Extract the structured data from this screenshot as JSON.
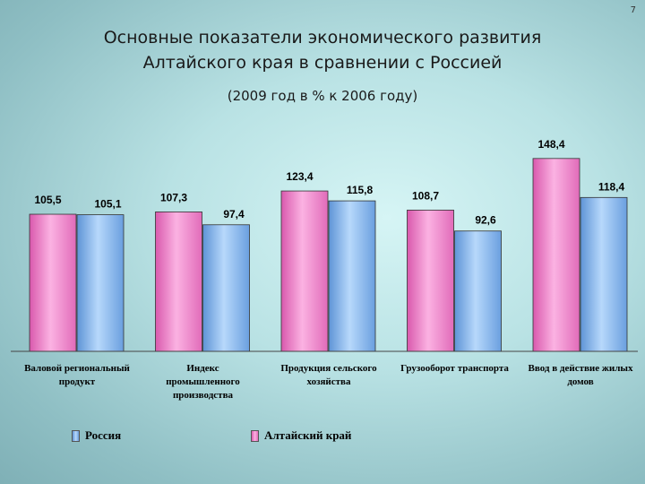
{
  "slide_number": "7",
  "title_line1": "Основные показатели экономического развития",
  "title_line2": "Алтайского края в сравнении с Россией",
  "subtitle": "(2009 год в % к 2006 году)",
  "colors": {
    "russia": "#7fb2ea",
    "altai": "#f07cc8"
  },
  "chart_data": {
    "type": "bar",
    "categories": [
      [
        "Валовой региональный",
        "продукт"
      ],
      [
        "Индекс",
        "промышленного",
        "производства"
      ],
      [
        "Продукция сельского",
        "хозяйства"
      ],
      [
        "Грузооборот транспорта"
      ],
      [
        "Ввод в действие жилых",
        "домов"
      ]
    ],
    "series": [
      {
        "name": "Алтайский край",
        "values": [
          105.5,
          107.3,
          123.4,
          108.7,
          148.4
        ],
        "labels": [
          "105,5",
          "107,3",
          "123,4",
          "108,7",
          "148,4"
        ]
      },
      {
        "name": "Россия",
        "values": [
          105.1,
          97.4,
          115.8,
          92.6,
          118.4
        ],
        "labels": [
          "105,1",
          "97,4",
          "115,8",
          "92,6",
          "118,4"
        ]
      }
    ],
    "legend": [
      "Россия",
      "Алтайский край"
    ],
    "legend_position": "bottom"
  }
}
